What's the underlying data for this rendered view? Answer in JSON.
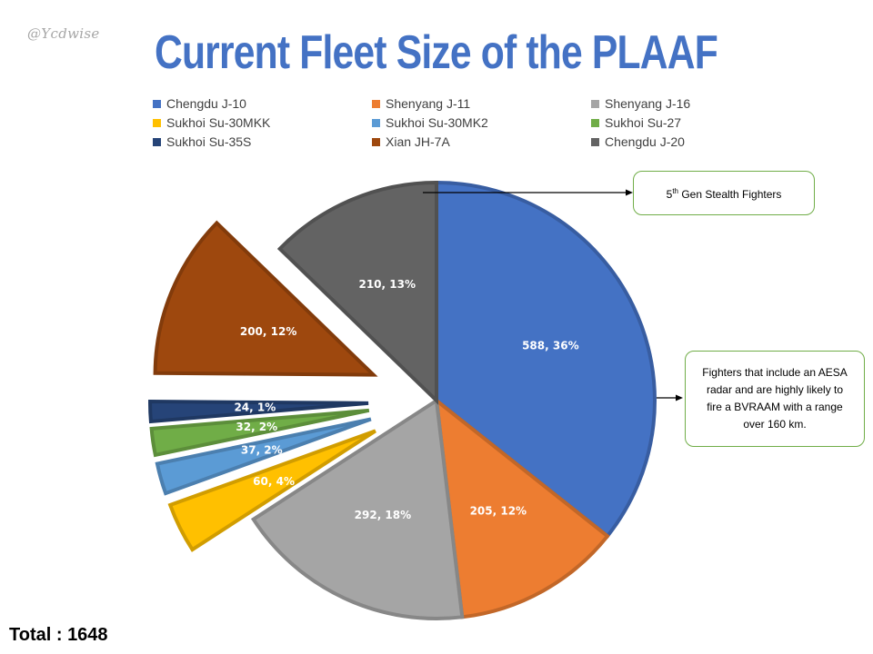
{
  "watermark": "@Ycdwise",
  "chart_data": {
    "type": "pie",
    "title": "Current Fleet Size of the PLAAF",
    "legend_position": "top",
    "slices": [
      {
        "name": "Chengdu J-10",
        "value": 588,
        "percent": "36%",
        "label": "588, 36%",
        "color": "#4472c4",
        "exploded": false
      },
      {
        "name": "Shenyang J-11",
        "value": 205,
        "percent": "12%",
        "label": "205, 12%",
        "color": "#ed7d31",
        "exploded": false
      },
      {
        "name": "Shenyang J-16",
        "value": 292,
        "percent": "18%",
        "label": "292, 18%",
        "color": "#a5a5a5",
        "exploded": false
      },
      {
        "name": "Sukhoi Su-30MKK",
        "value": 60,
        "percent": "4%",
        "label": "60, 4%",
        "color": "#ffc000",
        "exploded": true
      },
      {
        "name": "Sukhoi Su-30MK2",
        "value": 37,
        "percent": "2%",
        "label": "37, 2%",
        "color": "#5b9bd5",
        "exploded": true
      },
      {
        "name": "Sukhoi Su-27",
        "value": 32,
        "percent": "2%",
        "label": "32, 2%",
        "color": "#70ad47",
        "exploded": true
      },
      {
        "name": "Sukhoi Su-35S",
        "value": 24,
        "percent": "1%",
        "label": "24, 1%",
        "color": "#264478",
        "exploded": true
      },
      {
        "name": "Xian JH-7A",
        "value": 200,
        "percent": "12%",
        "label": "200, 12%",
        "color": "#9e480e",
        "exploded": true
      },
      {
        "name": "Chengdu J-20",
        "value": 210,
        "percent": "13%",
        "label": "210, 13%",
        "color": "#636363",
        "exploded": false
      }
    ],
    "total_label": "Total : 1648"
  },
  "annotations": {
    "stealth": {
      "base": "5",
      "sup": "th",
      "rest": " Gen Stealth Fighters"
    },
    "aesa": "Fighters that include an AESA radar and are highly likely to fire a BVRAAM with a range over 160 km."
  }
}
